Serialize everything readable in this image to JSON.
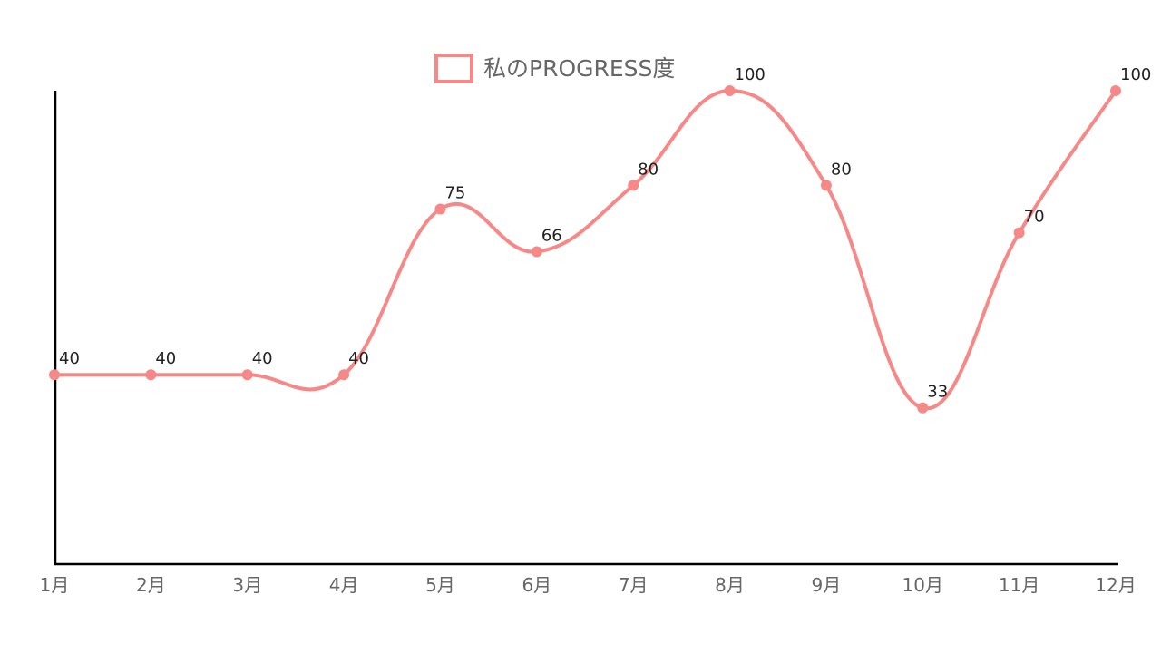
{
  "chart_data": {
    "type": "line",
    "categories": [
      "1月",
      "2月",
      "3月",
      "4月",
      "5月",
      "6月",
      "7月",
      "8月",
      "9月",
      "10月",
      "11月",
      "12月"
    ],
    "series": [
      {
        "name": "私のPROGRESS度",
        "values": [
          40,
          40,
          40,
          40,
          75,
          66,
          80,
          100,
          80,
          33,
          70,
          100
        ]
      }
    ],
    "title": "",
    "xlabel": "",
    "ylabel": "",
    "ylim": [
      0,
      100
    ],
    "grid": false,
    "legend": "top-center",
    "data_labels": true,
    "smooth": true,
    "colors": {
      "series": "#f78888",
      "axis": "#000000",
      "tick_text": "#666666",
      "legend_text": "#666666",
      "value_text": "#222222"
    }
  }
}
